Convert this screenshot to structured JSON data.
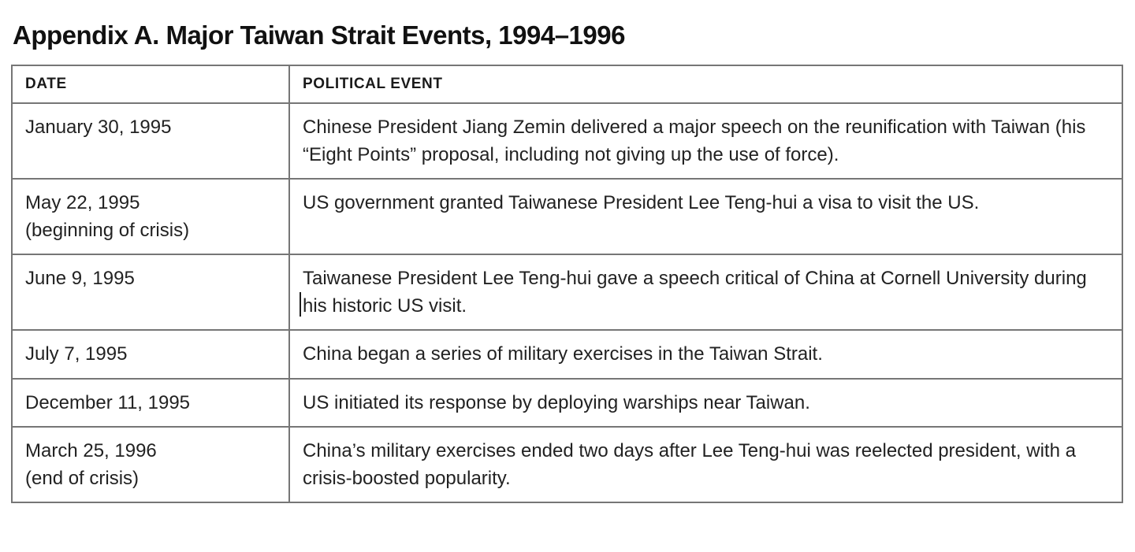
{
  "page": {
    "title": "Appendix A. Major Taiwan Strait Events, 1994–1996"
  },
  "colors": {
    "background": "#ffffff",
    "border": "#767676",
    "text": "#222222"
  },
  "table": {
    "headers": [
      "DATE",
      "POLITICAL EVENT"
    ],
    "rows": [
      {
        "date": "January 30, 1995",
        "note": null,
        "event": "Chinese President Jiang Zemin delivered a major speech on the reunification with Taiwan (his “Eight Points” proposal, including not giving up the use of force)."
      },
      {
        "date": "May 22, 1995",
        "note": "(beginning of crisis)",
        "event": "US government granted Taiwanese President Lee Teng-hui a visa to visit the US."
      },
      {
        "date": "June 9, 1995",
        "note": null,
        "event": "Taiwanese President Lee Teng-hui gave a speech critical of China at Cornell University during his historic US visit."
      },
      {
        "date": "July 7, 1995",
        "note": null,
        "event": "China began a series of military exercises in the Taiwan Strait."
      },
      {
        "date": "December 11, 1995",
        "note": null,
        "event": "US initiated its response by deploying warships near Taiwan."
      },
      {
        "date": "March 25, 1996",
        "note": "(end of crisis)",
        "event": "China’s military exercises ended two days after Lee Teng-hui was reelected president, with a crisis-boosted popularity."
      }
    ]
  }
}
